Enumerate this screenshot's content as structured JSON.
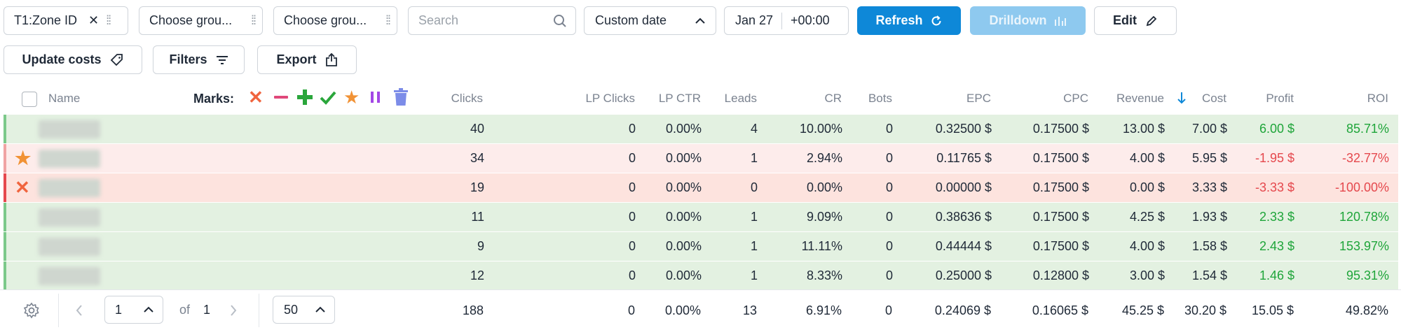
{
  "toolbar": {
    "grouping1": "T1:Zone ID",
    "grouping2_placeholder": "Choose grou...",
    "grouping3_placeholder": "Choose grou...",
    "search_placeholder": "Search",
    "date_range": "Custom date",
    "date": "Jan 27",
    "timezone": "+00:00",
    "refresh": "Refresh",
    "drilldown": "Drilldown",
    "edit": "Edit",
    "update_costs": "Update costs",
    "filters": "Filters",
    "export": "Export"
  },
  "table": {
    "headers": {
      "name": "Name",
      "marks": "Marks:",
      "clicks": "Clicks",
      "lp_clicks": "LP Clicks",
      "lp_ctr": "LP CTR",
      "leads": "Leads",
      "cr": "CR",
      "bots": "Bots",
      "epc": "EPC",
      "cpc": "CPC",
      "revenue": "Revenue",
      "cost": "Cost",
      "profit": "Profit",
      "roi": "ROI"
    },
    "rows": [
      {
        "clicks": "40",
        "lp_clicks": "0",
        "lp_ctr": "0.00%",
        "leads": "4",
        "cr": "10.00%",
        "bots": "0",
        "epc": "0.32500 $",
        "cpc": "0.17500 $",
        "revenue": "13.00 $",
        "cost": "7.00 $",
        "profit": "6.00 $",
        "roi": "85.71%"
      },
      {
        "clicks": "34",
        "lp_clicks": "0",
        "lp_ctr": "0.00%",
        "leads": "1",
        "cr": "2.94%",
        "bots": "0",
        "epc": "0.11765 $",
        "cpc": "0.17500 $",
        "revenue": "4.00 $",
        "cost": "5.95 $",
        "profit": "-1.95 $",
        "roi": "-32.77%"
      },
      {
        "clicks": "19",
        "lp_clicks": "0",
        "lp_ctr": "0.00%",
        "leads": "0",
        "cr": "0.00%",
        "bots": "0",
        "epc": "0.00000 $",
        "cpc": "0.17500 $",
        "revenue": "0.00 $",
        "cost": "3.33 $",
        "profit": "-3.33 $",
        "roi": "-100.00%"
      },
      {
        "clicks": "11",
        "lp_clicks": "0",
        "lp_ctr": "0.00%",
        "leads": "1",
        "cr": "9.09%",
        "bots": "0",
        "epc": "0.38636 $",
        "cpc": "0.17500 $",
        "revenue": "4.25 $",
        "cost": "1.93 $",
        "profit": "2.33 $",
        "roi": "120.78%"
      },
      {
        "clicks": "9",
        "lp_clicks": "0",
        "lp_ctr": "0.00%",
        "leads": "1",
        "cr": "11.11%",
        "bots": "0",
        "epc": "0.44444 $",
        "cpc": "0.17500 $",
        "revenue": "4.00 $",
        "cost": "1.58 $",
        "profit": "2.43 $",
        "roi": "153.97%"
      },
      {
        "clicks": "12",
        "lp_clicks": "0",
        "lp_ctr": "0.00%",
        "leads": "1",
        "cr": "8.33%",
        "bots": "0",
        "epc": "0.25000 $",
        "cpc": "0.12800 $",
        "revenue": "3.00 $",
        "cost": "1.54 $",
        "profit": "1.46 $",
        "roi": "95.31%"
      }
    ],
    "totals": {
      "clicks": "188",
      "lp_clicks": "0",
      "lp_ctr": "0.00%",
      "leads": "13",
      "cr": "6.91%",
      "bots": "0",
      "epc": "0.24069 $",
      "cpc": "0.16065 $",
      "revenue": "45.25 $",
      "cost": "30.20 $",
      "profit": "15.05 $",
      "roi": "49.82%"
    }
  },
  "pagination": {
    "page": "1",
    "of_label": "of",
    "total_pages": "1",
    "page_size": "50"
  },
  "colors": {
    "accent": "#0e88d8",
    "row_green": "#e3f1e1",
    "row_red_light": "#fdeceb",
    "row_red": "#fde3de",
    "positive": "#1fa53a",
    "negative": "#e5484d"
  }
}
